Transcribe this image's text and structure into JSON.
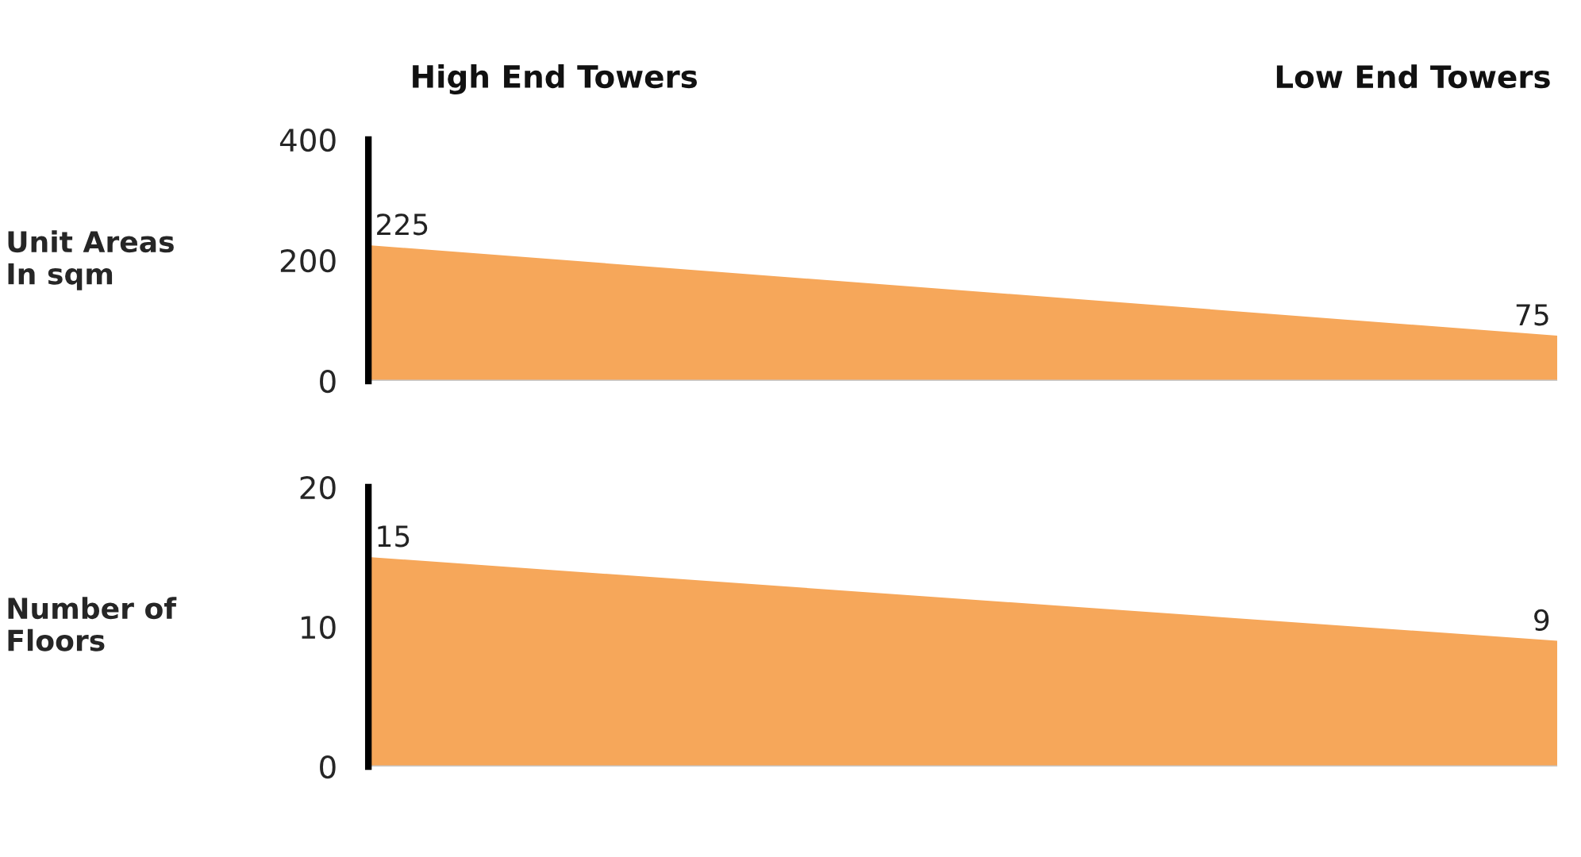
{
  "chart_data": [
    {
      "type": "area",
      "categories": [
        null,
        null
      ],
      "ylabel": "Unit Areas\nIn sqm",
      "annotations": [
        "High End Towers",
        "Low End Towers"
      ],
      "series": [
        {
          "color": "#f6a75a",
          "values": [
            225,
            75
          ]
        }
      ],
      "ylim": [
        0,
        400
      ],
      "yticks": [
        0,
        200,
        400
      ],
      "data_labels": true,
      "grid": false,
      "legend": false
    },
    {
      "type": "area",
      "categories": [
        null,
        null
      ],
      "ylabel": "Number of\nFloors",
      "series": [
        {
          "color": "#f6a75a",
          "values": [
            15,
            9
          ]
        }
      ],
      "ylim": [
        0,
        20
      ],
      "yticks": [
        0,
        10,
        20
      ],
      "data_labels": true,
      "grid": false,
      "legend": false
    }
  ]
}
